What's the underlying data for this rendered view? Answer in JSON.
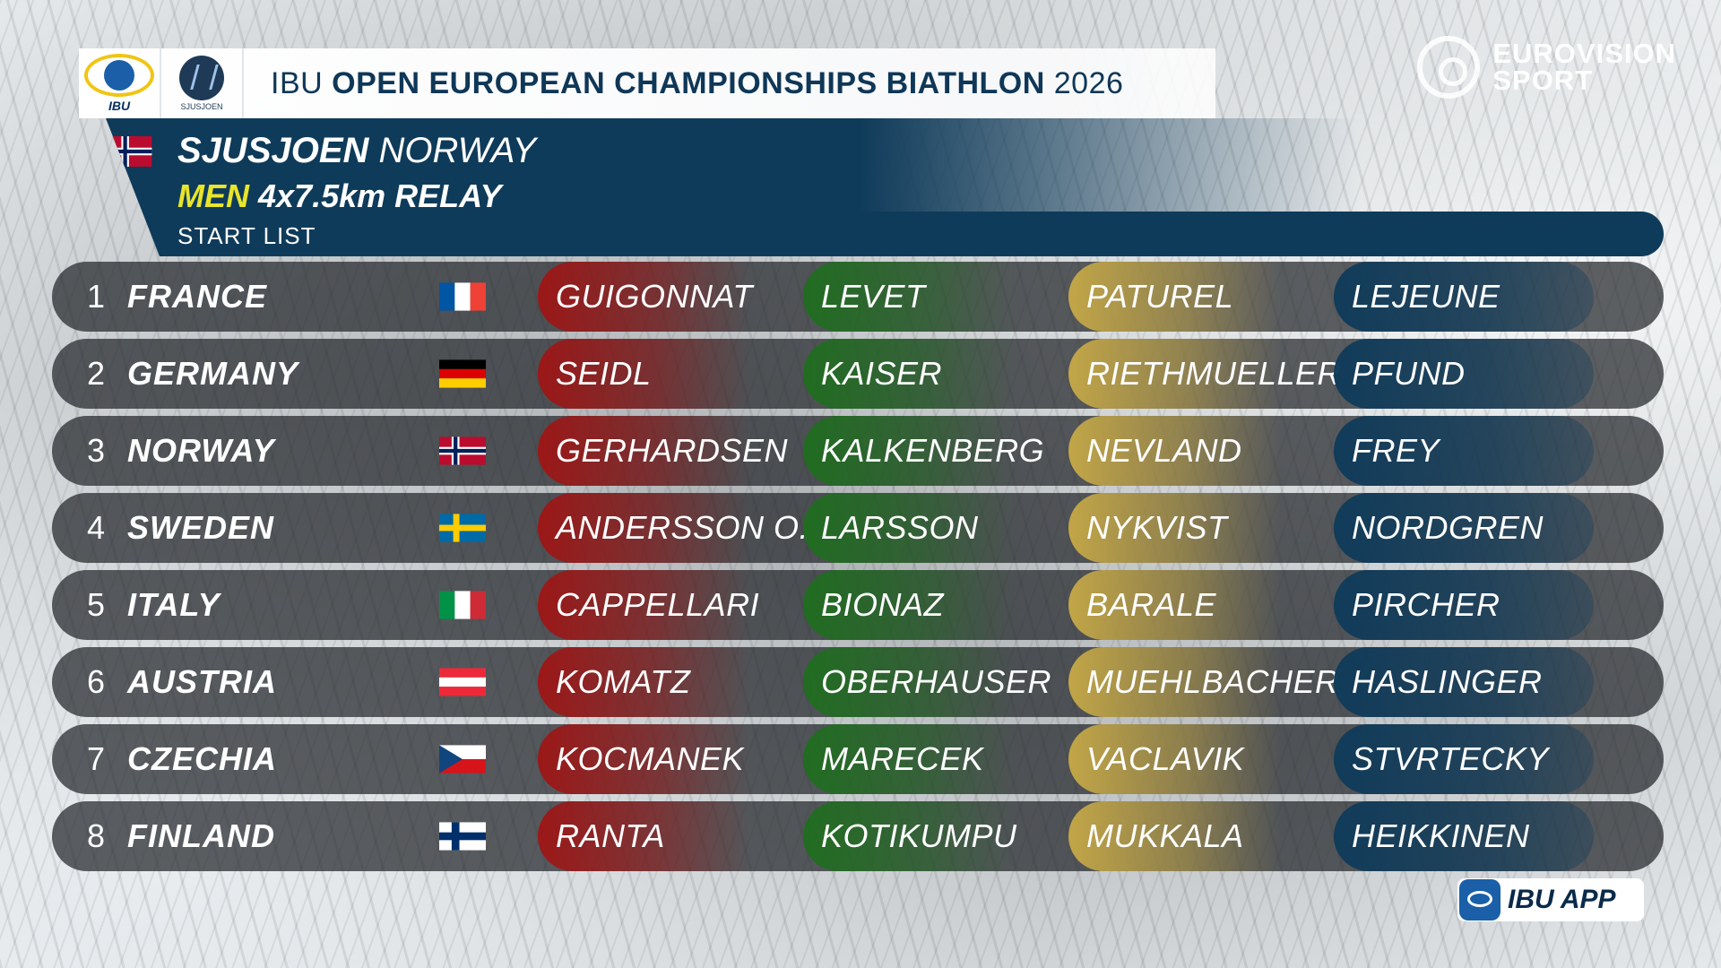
{
  "header": {
    "title_prefix": "IBU",
    "title_bold": "OPEN EUROPEAN CHAMPIONSHIPS BIATHLON",
    "title_year": "2026",
    "ibu_logo_text": "IBU",
    "venue_logo_text": "SJUSJOEN",
    "broadcaster": [
      "EUROVISION",
      "SPORT"
    ]
  },
  "event": {
    "city": "SJUSJOEN",
    "country": "NORWAY",
    "gender": "MEN",
    "distance": "4x7.5km",
    "discipline": "RELAY",
    "list_type": "START  LIST",
    "host_flag": "norway-flag"
  },
  "colors": {
    "panel_blue": "#0f3b5a",
    "leg1": "#a01414",
    "leg2": "#1e6e1e",
    "leg3": "#c8aa46",
    "leg4": "#0f3b5a",
    "gender_highlight": "#e8e52a"
  },
  "teams": [
    {
      "pos": "1",
      "nation": "FRANCE",
      "flag": "france-flag",
      "legs": [
        "GUIGONNAT",
        "LEVET",
        "PATUREL",
        "LEJEUNE"
      ]
    },
    {
      "pos": "2",
      "nation": "GERMANY",
      "flag": "germany-flag",
      "legs": [
        "SEIDL",
        "KAISER",
        "RIETHMUELLER",
        "PFUND"
      ]
    },
    {
      "pos": "3",
      "nation": "NORWAY",
      "flag": "norway-flag",
      "legs": [
        "GERHARDSEN",
        "KALKENBERG",
        "NEVLAND",
        "FREY"
      ]
    },
    {
      "pos": "4",
      "nation": "SWEDEN",
      "flag": "sweden-flag",
      "legs": [
        "ANDERSSON  O.",
        "LARSSON",
        "NYKVIST",
        "NORDGREN"
      ]
    },
    {
      "pos": "5",
      "nation": "ITALY",
      "flag": "italy-flag",
      "legs": [
        "CAPPELLARI",
        "BIONAZ",
        "BARALE",
        "PIRCHER"
      ]
    },
    {
      "pos": "6",
      "nation": "AUSTRIA",
      "flag": "austria-flag",
      "legs": [
        "KOMATZ",
        "OBERHAUSER",
        "MUEHLBACHER",
        "HASLINGER"
      ]
    },
    {
      "pos": "7",
      "nation": "CZECHIA",
      "flag": "czechia-flag",
      "legs": [
        "KOCMANEK",
        "MARECEK",
        "VACLAVIK",
        "STVRTECKY"
      ]
    },
    {
      "pos": "8",
      "nation": "FINLAND",
      "flag": "finland-flag",
      "legs": [
        "RANTA",
        "KOTIKUMPU",
        "MUKKALA",
        "HEIKKINEN"
      ]
    }
  ],
  "app_badge": {
    "label": "IBU APP"
  }
}
